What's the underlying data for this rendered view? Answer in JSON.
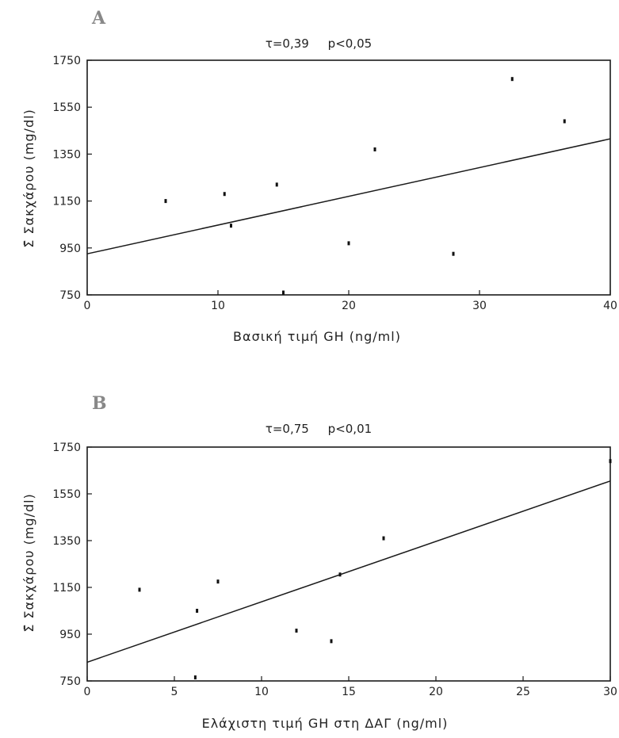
{
  "chart_data": [
    {
      "type": "scatter",
      "panel": "A",
      "stats": "τ=0,39     p<0,05",
      "xlabel": "Βασική τιμή GH  (ng/ml)",
      "ylabel": "Σ̄ Σακχάρου (mg/dl)",
      "xlim": [
        0,
        40
      ],
      "ylim": [
        750,
        1750
      ],
      "xticks": [
        0,
        10,
        20,
        30,
        40
      ],
      "yticks": [
        750,
        950,
        1150,
        1350,
        1550,
        1750
      ],
      "xtick_labels": [
        "0",
        "10",
        "20",
        "30",
        "40"
      ],
      "ytick_labels": [
        "750",
        "950",
        "1150",
        "1350",
        "1550",
        "1750"
      ],
      "points": [
        {
          "x": 6,
          "y": 1150
        },
        {
          "x": 10.5,
          "y": 1180
        },
        {
          "x": 11,
          "y": 1045
        },
        {
          "x": 14.5,
          "y": 1220
        },
        {
          "x": 15,
          "y": 760
        },
        {
          "x": 20,
          "y": 970
        },
        {
          "x": 22,
          "y": 1370
        },
        {
          "x": 28,
          "y": 925
        },
        {
          "x": 32.5,
          "y": 1670
        },
        {
          "x": 36.5,
          "y": 1490
        }
      ],
      "fit": {
        "x": [
          0,
          40
        ],
        "y": [
          925,
          1415
        ]
      }
    },
    {
      "type": "scatter",
      "panel": "B",
      "stats": "τ=0,75     p<0,01",
      "xlabel": "Ελάχιστη τιμή GH στη ΔΑΓ  (ng/ml)",
      "ylabel": "Σ̄ Σακχάρου (mg/dl)",
      "xlim": [
        0,
        30
      ],
      "ylim": [
        750,
        1750
      ],
      "xticks": [
        0,
        5,
        10,
        15,
        20,
        25,
        30
      ],
      "yticks": [
        750,
        950,
        1150,
        1350,
        1550,
        1750
      ],
      "xtick_labels": [
        "0",
        "5",
        "10",
        "15",
        "20",
        "25",
        "30"
      ],
      "ytick_labels": [
        "750",
        "950",
        "1150",
        "1350",
        "1550",
        "1750"
      ],
      "points": [
        {
          "x": 3,
          "y": 1140
        },
        {
          "x": 6.2,
          "y": 765
        },
        {
          "x": 6.3,
          "y": 1050
        },
        {
          "x": 7.5,
          "y": 1175
        },
        {
          "x": 12,
          "y": 965
        },
        {
          "x": 14,
          "y": 920
        },
        {
          "x": 14.5,
          "y": 1205
        },
        {
          "x": 17,
          "y": 1360
        },
        {
          "x": 30,
          "y": 1690
        }
      ],
      "fit": {
        "x": [
          0,
          30
        ],
        "y": [
          830,
          1605
        ]
      }
    }
  ]
}
